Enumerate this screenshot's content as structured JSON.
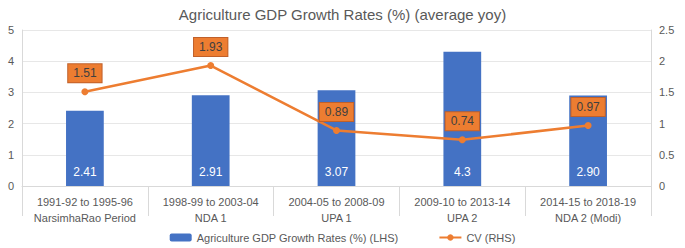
{
  "chart_data": {
    "type": "bar",
    "title": "Agriculture GDP Growth Rates (%) (average yoy)",
    "categories": [
      "1991-92 to 1995-96\nNarsimhaRao Period",
      "1998-99 to 2003-04\nNDA 1",
      "2004-05 to 2008-09\nUPA 1",
      "2009-10 to 2013-14\nUPA 2",
      "2014-15 to 2018-19\nNDA 2 (Modi)"
    ],
    "series": [
      {
        "name": "Agriculture GDP Growth Rates (%) (LHS)",
        "type": "bar",
        "color": "#4472c4",
        "values": [
          2.41,
          2.91,
          3.07,
          4.3,
          2.9
        ],
        "value_labels": [
          "2.41",
          "2.91",
          "3.07",
          "4.3",
          "2.90"
        ]
      },
      {
        "name": "CV (RHS)",
        "type": "line",
        "axis": "y2",
        "color": "#ed7d31",
        "marker": "circle",
        "values": [
          1.51,
          1.93,
          0.89,
          0.74,
          0.97
        ]
      }
    ],
    "ylim": [
      0,
      5
    ],
    "yticks": [
      0,
      1,
      2,
      3,
      4,
      5
    ],
    "y2lim": [
      0,
      2.5
    ],
    "y2ticks": [
      0,
      0.5,
      1,
      1.5,
      2,
      2.5
    ],
    "grid": true,
    "legend": "bottom",
    "data_labels": true
  }
}
